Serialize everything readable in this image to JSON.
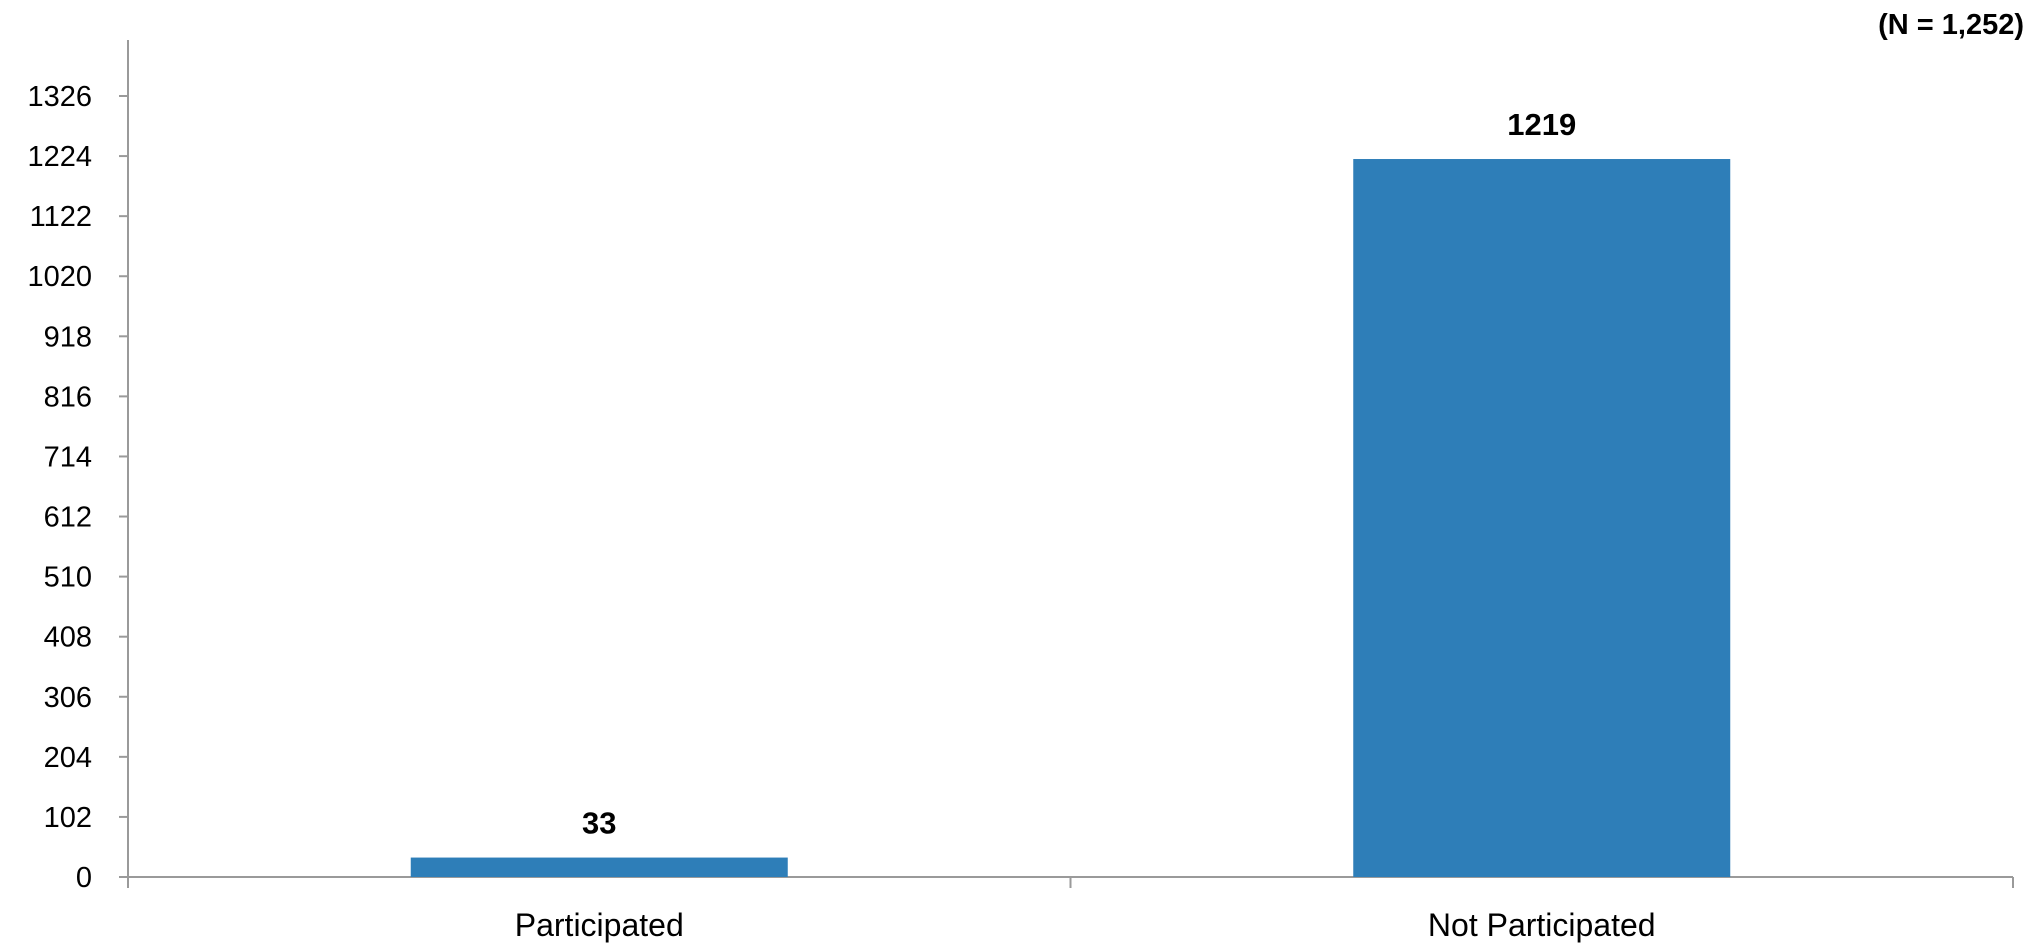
{
  "chart_data": {
    "type": "bar",
    "title": "",
    "xlabel": "",
    "ylabel": "",
    "annotation": "(N = 1,252)",
    "categories": [
      "Participated",
      "Not Participated"
    ],
    "values": [
      33,
      1219
    ],
    "data_labels": [
      "33",
      "1219"
    ],
    "ylim": [
      0,
      1326
    ],
    "yticks": [
      0,
      102,
      204,
      306,
      408,
      510,
      612,
      714,
      816,
      918,
      1020,
      1122,
      1224,
      1326
    ],
    "ytick_labels": [
      "0",
      "102",
      "204",
      "306",
      "408",
      "510",
      "612",
      "714",
      "816",
      "918",
      "1020",
      "1122",
      "1224",
      "1326"
    ],
    "grid": false,
    "legend": "none",
    "bar_color": "#2E7EB8",
    "axis_color": "#9A9A9A"
  }
}
